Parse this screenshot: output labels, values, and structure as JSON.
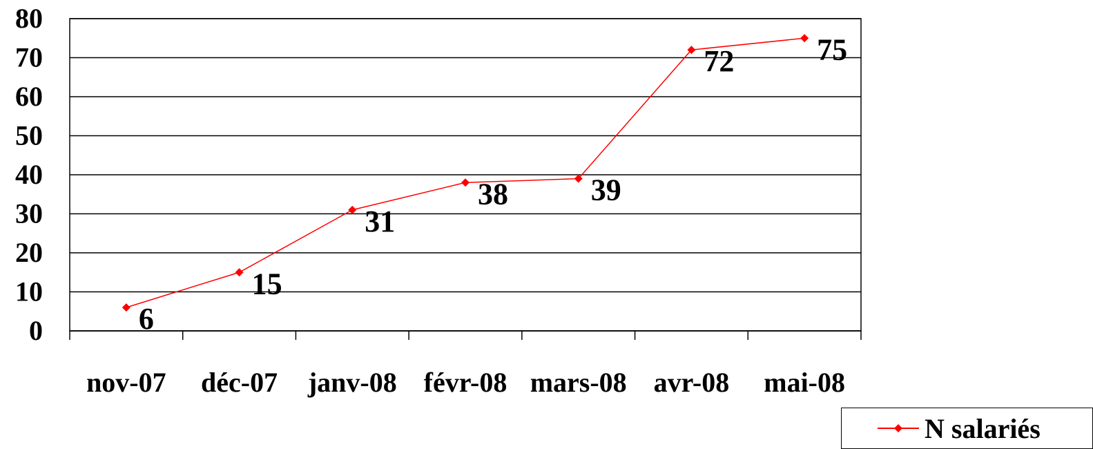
{
  "chart_data": {
    "type": "line",
    "title": "",
    "xlabel": "",
    "ylabel": "",
    "categories": [
      "nov-07",
      "déc-07",
      "janv-08",
      "févr-08",
      "mars-08",
      "avr-08",
      "mai-08"
    ],
    "series": [
      {
        "name": "N salariés",
        "values": [
          6,
          15,
          31,
          38,
          39,
          72,
          75
        ],
        "color": "#ff0000"
      }
    ],
    "ylim": [
      0,
      80
    ],
    "yticks": [
      0,
      10,
      20,
      30,
      40,
      50,
      60,
      70,
      80
    ],
    "grid": true,
    "legend": "bottom-right",
    "data_labels": true,
    "marker": "diamond"
  }
}
